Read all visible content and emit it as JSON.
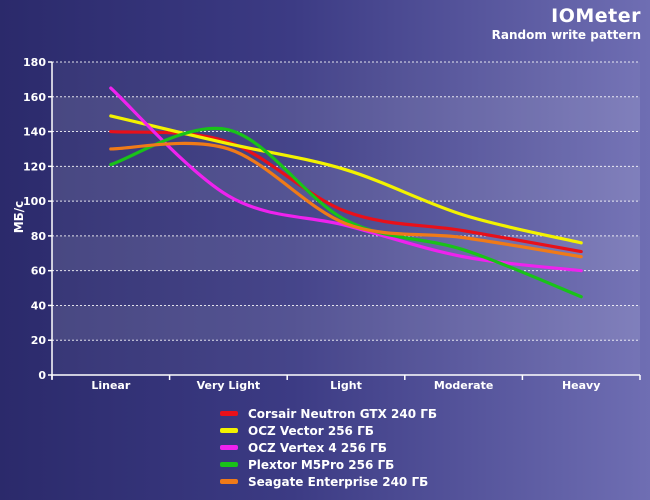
{
  "header": {
    "title": "IOMeter",
    "subtitle": "Random write pattern"
  },
  "chart_data": {
    "type": "line",
    "title": "IOMeter",
    "subtitle": "Random write pattern",
    "xlabel": "",
    "ylabel": "МБ/с",
    "ylim": [
      0,
      180
    ],
    "yticks": [
      0,
      20,
      40,
      60,
      80,
      100,
      120,
      140,
      160,
      180
    ],
    "categories": [
      "Linear",
      "Very Light",
      "Light",
      "Moderate",
      "Heavy"
    ],
    "grid": true,
    "legend_position": "bottom",
    "series": [
      {
        "name": "Corsair Neutron GTX 240 ГБ",
        "color": "#e8101a",
        "values": [
          140,
          134,
          94,
          83,
          71
        ]
      },
      {
        "name": "OCZ Vector 256 ГБ",
        "color": "#f2f200",
        "values": [
          149,
          133,
          118,
          92,
          76
        ]
      },
      {
        "name": "OCZ Vertex 4 256 ГБ",
        "color": "#ee22ee",
        "values": [
          165,
          103,
          86,
          68,
          60
        ]
      },
      {
        "name": "Plextor M5Pro 256 ГБ",
        "color": "#19c219",
        "values": [
          121,
          141,
          89,
          72,
          45
        ]
      },
      {
        "name": "Seagate Enterprise 240 ГБ",
        "color": "#f07a18",
        "values": [
          130,
          130,
          87,
          79,
          68
        ]
      }
    ]
  }
}
